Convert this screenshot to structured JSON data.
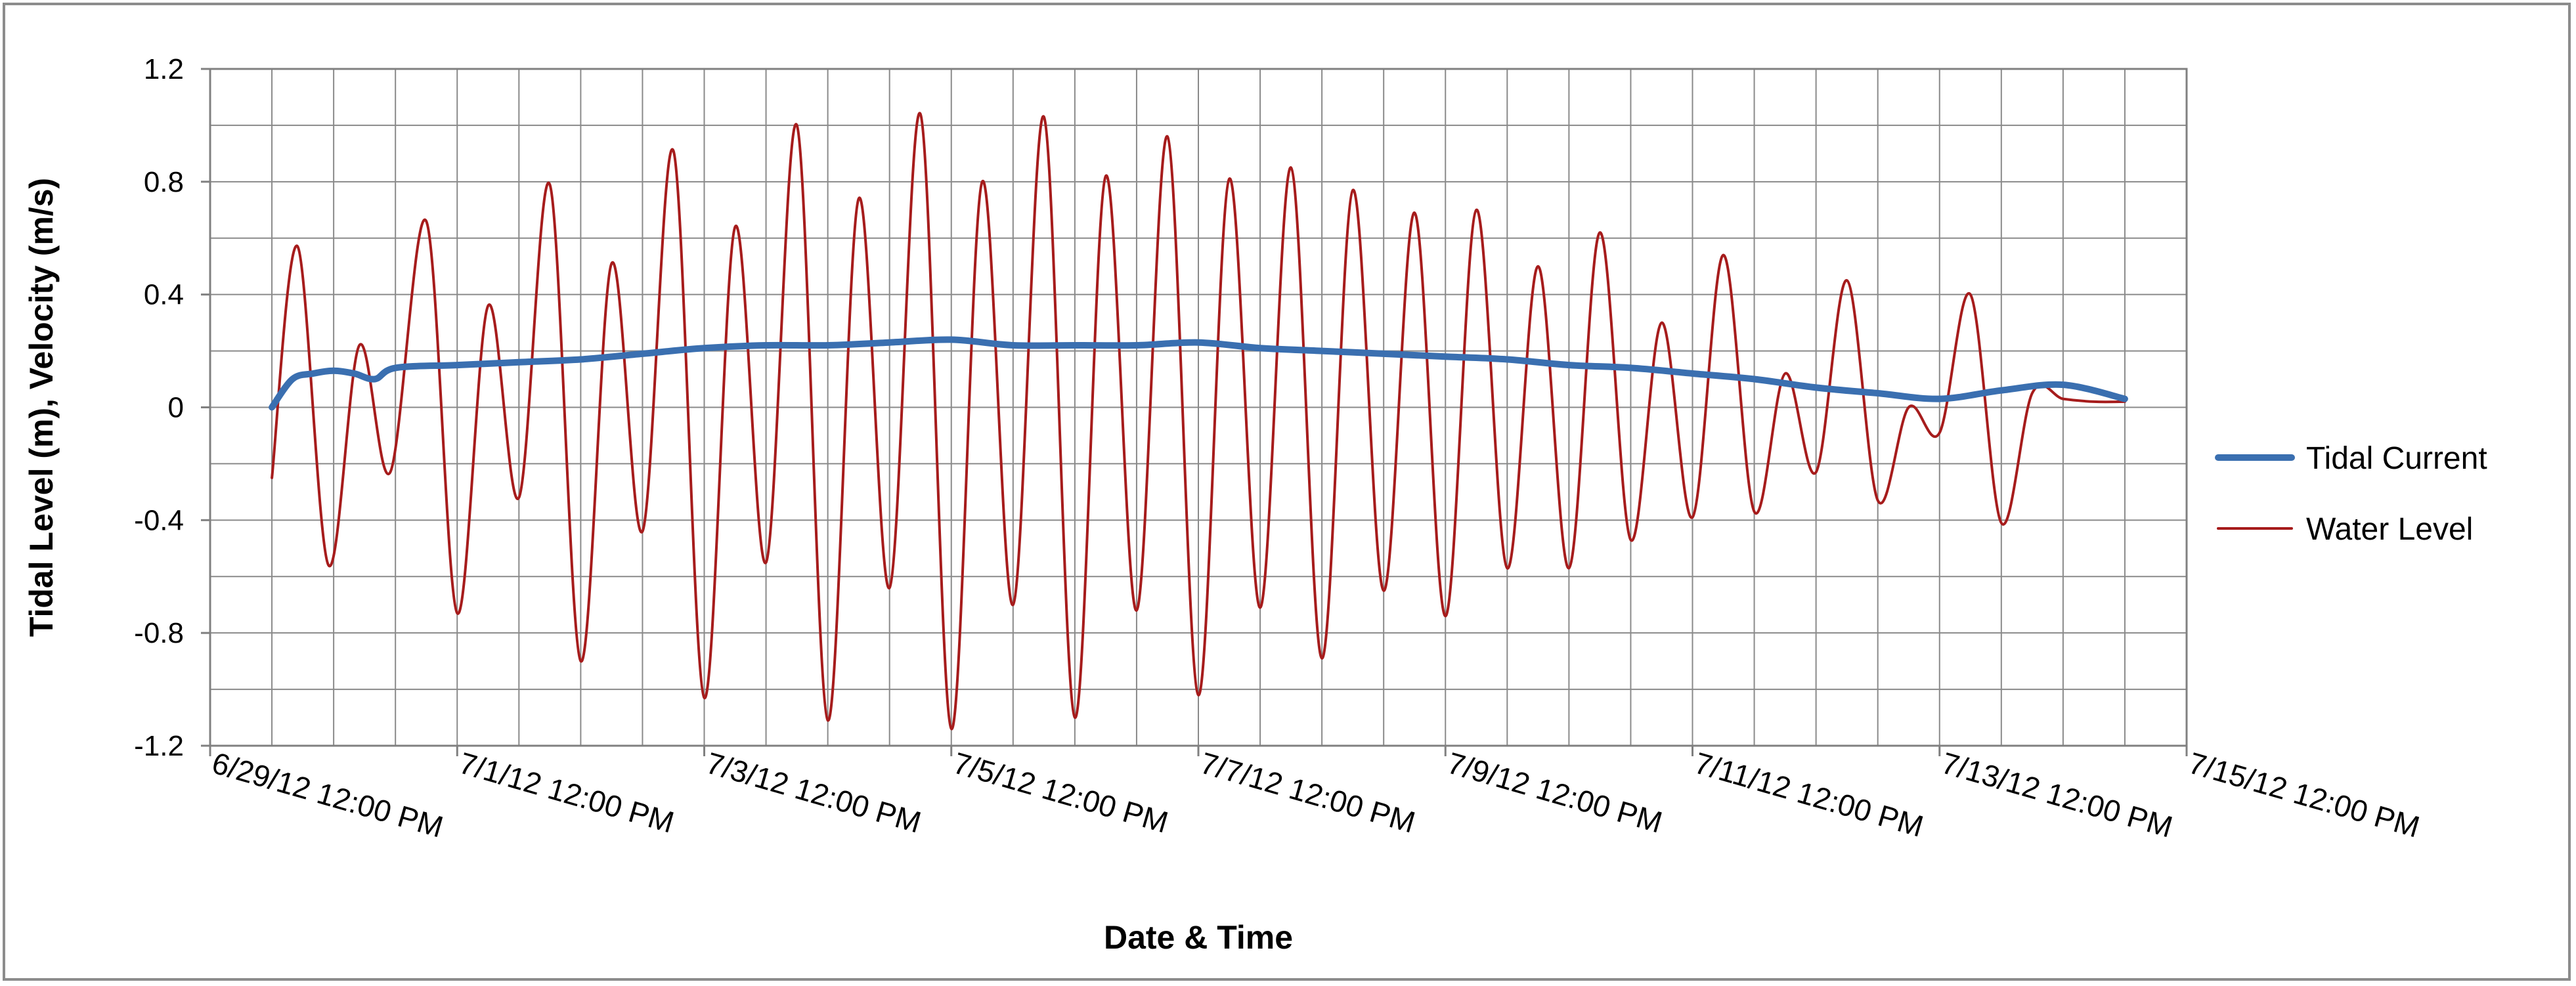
{
  "chart_data": {
    "type": "line",
    "xlabel": "Date & Time",
    "ylabel": "Tidal Level (m), Velocity (m/s)",
    "ylim": [
      -1.2,
      1.2
    ],
    "yticks": [
      1.2,
      0.8,
      0.4,
      0,
      -0.4,
      -0.8,
      -1.2
    ],
    "ytick_labels": [
      "1.2",
      "0.8",
      "0.4",
      "0",
      "-0.4",
      "-0.8",
      "-1.2"
    ],
    "xlim": [
      "2012-06-29T12:00",
      "2012-07-15T12:00"
    ],
    "xtick_labels": [
      "6/29/12 12:00 PM",
      "7/1/12 12:00 PM",
      "7/3/12 12:00 PM",
      "7/5/12 12:00 PM",
      "7/7/12 12:00 PM",
      "7/9/12 12:00 PM",
      "7/11/12 12:00 PM",
      "7/13/12 12:00 PM",
      "7/15/12 12:00 PM"
    ],
    "grid": true,
    "legend_position": "right",
    "series": [
      {
        "name": "Tidal Current",
        "color": "#3a6fb0",
        "x": [
          "2012-06-30T00:00",
          "2012-06-30T04:00",
          "2012-06-30T08:00",
          "2012-06-30T12:00",
          "2012-06-30T16:00",
          "2012-06-30T20:00",
          "2012-07-01T00:00",
          "2012-07-01T12:00",
          "2012-07-02T00:00",
          "2012-07-02T12:00",
          "2012-07-03T00:00",
          "2012-07-03T12:00",
          "2012-07-04T00:00",
          "2012-07-04T12:00",
          "2012-07-05T00:00",
          "2012-07-05T12:00",
          "2012-07-06T00:00",
          "2012-07-06T12:00",
          "2012-07-07T00:00",
          "2012-07-07T12:00",
          "2012-07-08T00:00",
          "2012-07-08T12:00",
          "2012-07-09T00:00",
          "2012-07-09T12:00",
          "2012-07-10T00:00",
          "2012-07-10T12:00",
          "2012-07-11T00:00",
          "2012-07-11T12:00",
          "2012-07-12T00:00",
          "2012-07-12T12:00",
          "2012-07-13T00:00",
          "2012-07-13T12:00",
          "2012-07-14T00:00",
          "2012-07-14T12:00",
          "2012-07-15T00:00"
        ],
        "y": [
          0.0,
          0.1,
          0.12,
          0.13,
          0.12,
          0.1,
          0.14,
          0.15,
          0.16,
          0.17,
          0.19,
          0.21,
          0.22,
          0.22,
          0.23,
          0.24,
          0.22,
          0.22,
          0.22,
          0.23,
          0.21,
          0.2,
          0.19,
          0.18,
          0.17,
          0.15,
          0.14,
          0.12,
          0.1,
          0.07,
          0.05,
          0.03,
          0.06,
          0.08,
          0.03
        ]
      },
      {
        "name": "Water Level",
        "color": "#a61c1c",
        "x": [
          "2012-06-30T00:00",
          "2012-06-30T05:00",
          "2012-06-30T11:00",
          "2012-06-30T17:00",
          "2012-06-30T23:00",
          "2012-07-01T06:00",
          "2012-07-01T12:00",
          "2012-07-01T18:00",
          "2012-07-02T00:00",
          "2012-07-02T06:00",
          "2012-07-02T12:00",
          "2012-07-02T18:00",
          "2012-07-03T00:00",
          "2012-07-03T06:00",
          "2012-07-03T12:00",
          "2012-07-03T18:00",
          "2012-07-04T00:00",
          "2012-07-04T06:00",
          "2012-07-04T12:00",
          "2012-07-04T18:00",
          "2012-07-05T00:00",
          "2012-07-05T06:00",
          "2012-07-05T12:00",
          "2012-07-05T18:00",
          "2012-07-06T00:00",
          "2012-07-06T06:00",
          "2012-07-06T12:00",
          "2012-07-06T18:00",
          "2012-07-07T00:00",
          "2012-07-07T06:00",
          "2012-07-07T12:00",
          "2012-07-07T18:00",
          "2012-07-08T00:00",
          "2012-07-08T06:00",
          "2012-07-08T12:00",
          "2012-07-08T18:00",
          "2012-07-09T00:00",
          "2012-07-09T06:00",
          "2012-07-09T12:00",
          "2012-07-09T18:00",
          "2012-07-10T00:00",
          "2012-07-10T06:00",
          "2012-07-10T12:00",
          "2012-07-10T18:00",
          "2012-07-11T00:00",
          "2012-07-11T06:00",
          "2012-07-11T12:00",
          "2012-07-11T18:00",
          "2012-07-12T00:00",
          "2012-07-12T06:00",
          "2012-07-12T12:00",
          "2012-07-12T18:00",
          "2012-07-13T00:00",
          "2012-07-13T06:00",
          "2012-07-13T12:00",
          "2012-07-13T18:00",
          "2012-07-14T00:00",
          "2012-07-14T06:00",
          "2012-07-14T12:00",
          "2012-07-14T18:00",
          "2012-07-15T00:00"
        ],
        "y": [
          -0.25,
          0.57,
          -0.56,
          0.22,
          -0.23,
          0.66,
          -0.73,
          0.36,
          -0.32,
          0.79,
          -0.9,
          0.51,
          -0.44,
          0.91,
          -1.03,
          0.64,
          -0.55,
          1.0,
          -1.11,
          0.74,
          -0.64,
          1.04,
          -1.14,
          0.8,
          -0.7,
          1.03,
          -1.1,
          0.82,
          -0.72,
          0.96,
          -1.02,
          0.81,
          -0.71,
          0.85,
          -0.89,
          0.77,
          -0.65,
          0.69,
          -0.74,
          0.7,
          -0.57,
          0.5,
          -0.57,
          0.62,
          -0.47,
          0.3,
          -0.39,
          0.54,
          -0.37,
          0.12,
          -0.23,
          0.45,
          -0.33,
          0.0,
          -0.09,
          0.4,
          -0.41,
          0.05,
          0.03,
          0.02,
          0.02
        ]
      }
    ]
  }
}
